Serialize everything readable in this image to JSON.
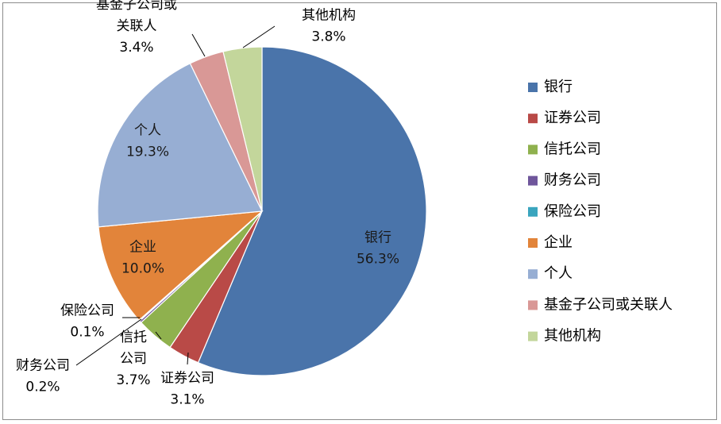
{
  "chart_data": {
    "type": "pie",
    "start_angle_deg": 0,
    "direction": "clockwise",
    "slices": [
      {
        "name": "银行",
        "value": 56.3,
        "pct_label": "56.3%",
        "color": "#4a74aa"
      },
      {
        "name": "证券公司",
        "value": 3.1,
        "pct_label": "3.1%",
        "color": "#b94a47"
      },
      {
        "name": "信托公司",
        "value": 3.7,
        "pct_label": "3.7%",
        "color": "#8fb14e"
      },
      {
        "name": "财务公司",
        "value": 0.2,
        "pct_label": "0.2%",
        "color": "#6f569b"
      },
      {
        "name": "保险公司",
        "value": 0.1,
        "pct_label": "0.1%",
        "color": "#3aa5be"
      },
      {
        "name": "企业",
        "value": 10.0,
        "pct_label": "10.0%",
        "color": "#e2843a"
      },
      {
        "name": "个人",
        "value": 19.3,
        "pct_label": "19.3%",
        "color": "#97aed3"
      },
      {
        "name": "基金子公司或关联人",
        "value": 3.4,
        "pct_label": "3.4%",
        "color": "#d99896"
      },
      {
        "name": "其他机构",
        "value": 3.8,
        "pct_label": "3.8%",
        "color": "#c3d69b"
      }
    ],
    "data_labels": [
      {
        "lines": [
          "银行",
          "56.3%"
        ]
      },
      {
        "lines": [
          "证券公司",
          "3.1%"
        ]
      },
      {
        "lines": [
          "信托",
          "公司",
          "3.7%"
        ]
      },
      {
        "lines": [
          "财务公司",
          "0.2%"
        ]
      },
      {
        "lines": [
          "保险公司",
          "0.1%"
        ]
      },
      {
        "lines": [
          "企业",
          "10.0%"
        ]
      },
      {
        "lines": [
          "个人",
          "19.3%"
        ]
      },
      {
        "lines": [
          "基金子公司或",
          "关联人",
          "3.4%"
        ]
      },
      {
        "lines": [
          "其他机构",
          "3.8%"
        ]
      }
    ],
    "legend": {
      "placement": "right",
      "entries": [
        "银行",
        "证券公司",
        "信托公司",
        "财务公司",
        "保险公司",
        "企业",
        "个人",
        "基金子公司或关联人",
        "其他机构"
      ]
    }
  }
}
